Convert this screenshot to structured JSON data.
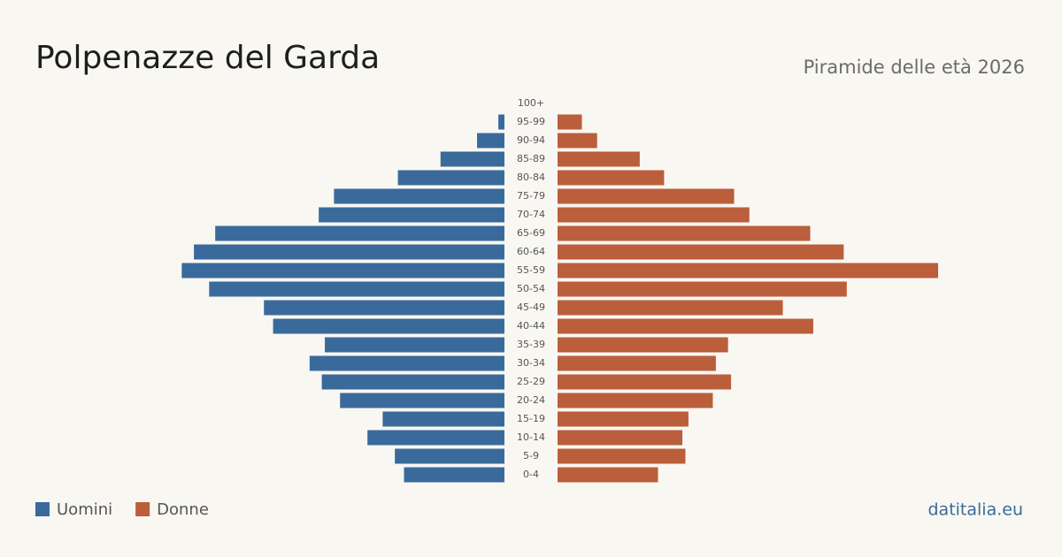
{
  "chart_data": {
    "type": "pyramid",
    "title": "Polpenazze del Garda",
    "subtitle": "Piramide delle età 2026",
    "source": "datitalia.eu",
    "categories": [
      "100+",
      "95-99",
      "90-94",
      "85-89",
      "80-84",
      "75-79",
      "70-74",
      "65-69",
      "60-64",
      "55-59",
      "50-54",
      "45-49",
      "40-44",
      "35-39",
      "30-34",
      "25-29",
      "20-24",
      "15-19",
      "10-14",
      "5-9",
      "0-4"
    ],
    "series": [
      {
        "name": "Uomini",
        "color": "#3a6a9b",
        "values": [
          0,
          2,
          9,
          21,
          35,
          56,
          61,
          95,
          102,
          106,
          97,
          79,
          76,
          59,
          64,
          60,
          54,
          40,
          45,
          36,
          33
        ]
      },
      {
        "name": "Donne",
        "color": "#bb5e3c",
        "values": [
          0,
          8,
          13,
          27,
          35,
          58,
          63,
          83,
          94,
          125,
          95,
          74,
          84,
          56,
          52,
          57,
          51,
          43,
          41,
          42,
          33
        ]
      }
    ]
  }
}
